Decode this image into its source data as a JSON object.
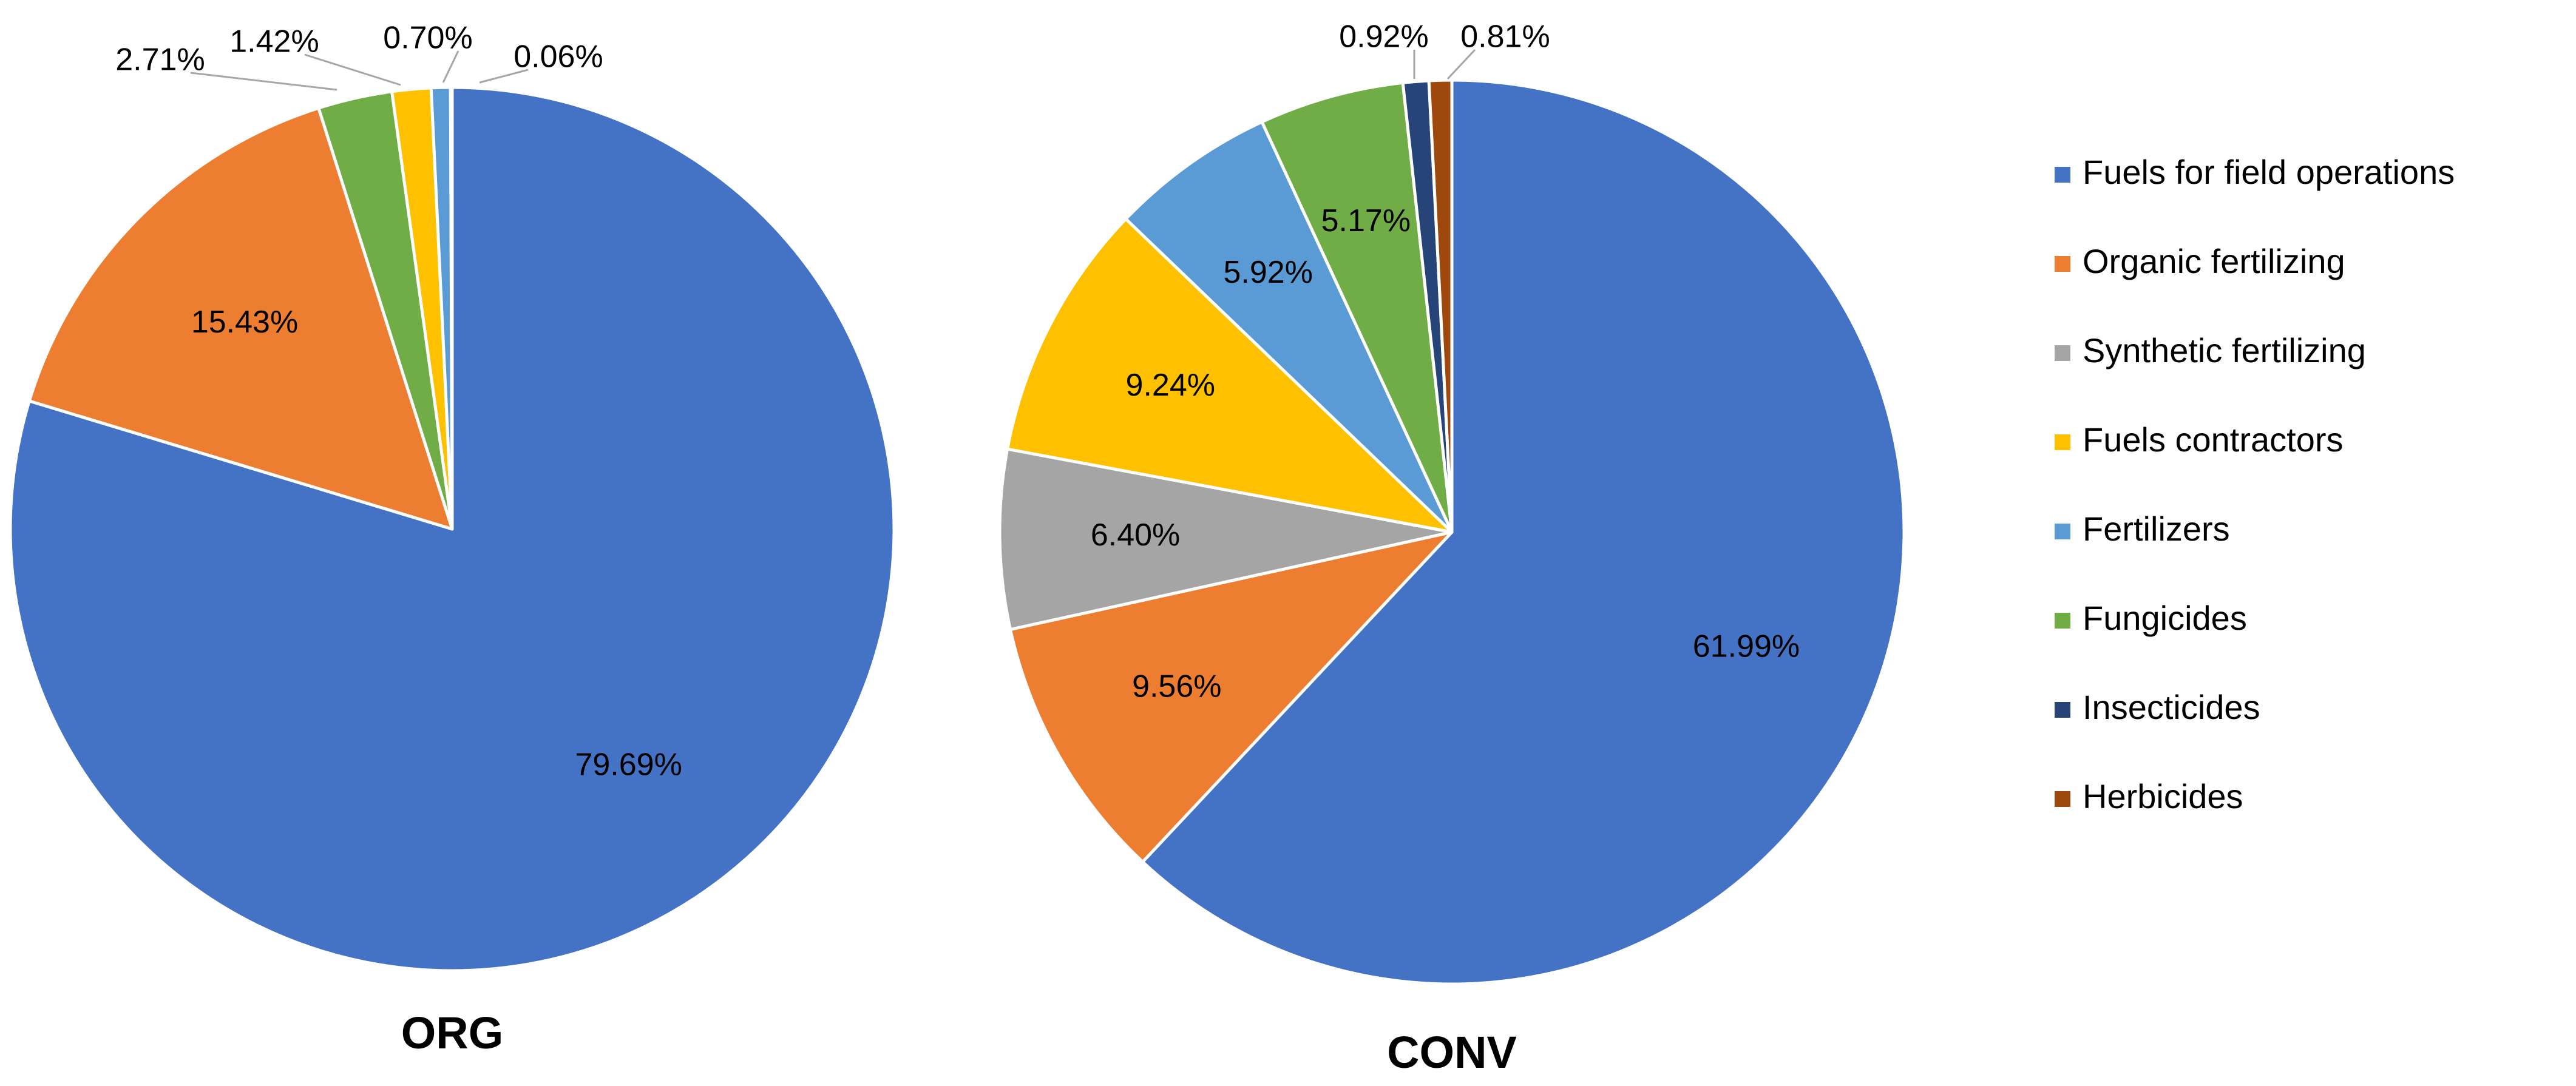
{
  "chart_data": [
    {
      "type": "pie",
      "title": "ORG",
      "slices": [
        {
          "label": "Fuels for field operations",
          "value": 79.69,
          "display": "79.69%",
          "color": "#4472c4"
        },
        {
          "label": "Organic fertilizing",
          "value": 15.43,
          "display": "15.43%",
          "color": "#ed7d31"
        },
        {
          "label": "Fungicides",
          "value": 2.71,
          "display": "2.71%",
          "color": "#70ad47"
        },
        {
          "label": "Fuels contractors",
          "value": 1.42,
          "display": "1.42%",
          "color": "#ffc000"
        },
        {
          "label": "Fertilizers",
          "value": 0.7,
          "display": "0.70%",
          "color": "#5b9bd5"
        },
        {
          "label": "Insecticides",
          "value": 0.06,
          "display": "0.06%",
          "color": "#264478"
        }
      ]
    },
    {
      "type": "pie",
      "title": "CONV",
      "slices": [
        {
          "label": "Fuels for field operations",
          "value": 61.99,
          "display": "61.99%",
          "color": "#4472c4"
        },
        {
          "label": "Organic fertilizing",
          "value": 9.56,
          "display": "9.56%",
          "color": "#ed7d31"
        },
        {
          "label": "Synthetic fertilizing",
          "value": 6.4,
          "display": "6.40%",
          "color": "#a5a5a5"
        },
        {
          "label": "Fuels contractors",
          "value": 9.24,
          "display": "9.24%",
          "color": "#ffc000"
        },
        {
          "label": "Fertilizers",
          "value": 5.92,
          "display": "5.92%",
          "color": "#5b9bd5"
        },
        {
          "label": "Fungicides",
          "value": 5.17,
          "display": "5.17%",
          "color": "#70ad47"
        },
        {
          "label": "Insecticides",
          "value": 0.92,
          "display": "0.92%",
          "color": "#264478"
        },
        {
          "label": "Herbicides",
          "value": 0.81,
          "display": "0.81%",
          "color": "#9e480e"
        }
      ]
    }
  ],
  "legend": {
    "position": "right",
    "entries": [
      {
        "label": "Fuels for field operations",
        "color": "#4472c4"
      },
      {
        "label": "Organic fertilizing",
        "color": "#ed7d31"
      },
      {
        "label": "Synthetic fertilizing",
        "color": "#a5a5a5"
      },
      {
        "label": "Fuels contractors",
        "color": "#ffc000"
      },
      {
        "label": "Fertilizers",
        "color": "#5b9bd5"
      },
      {
        "label": "Fungicides",
        "color": "#70ad47"
      },
      {
        "label": "Insecticides",
        "color": "#264478"
      },
      {
        "label": "Herbicides",
        "color": "#9e480e"
      }
    ]
  }
}
